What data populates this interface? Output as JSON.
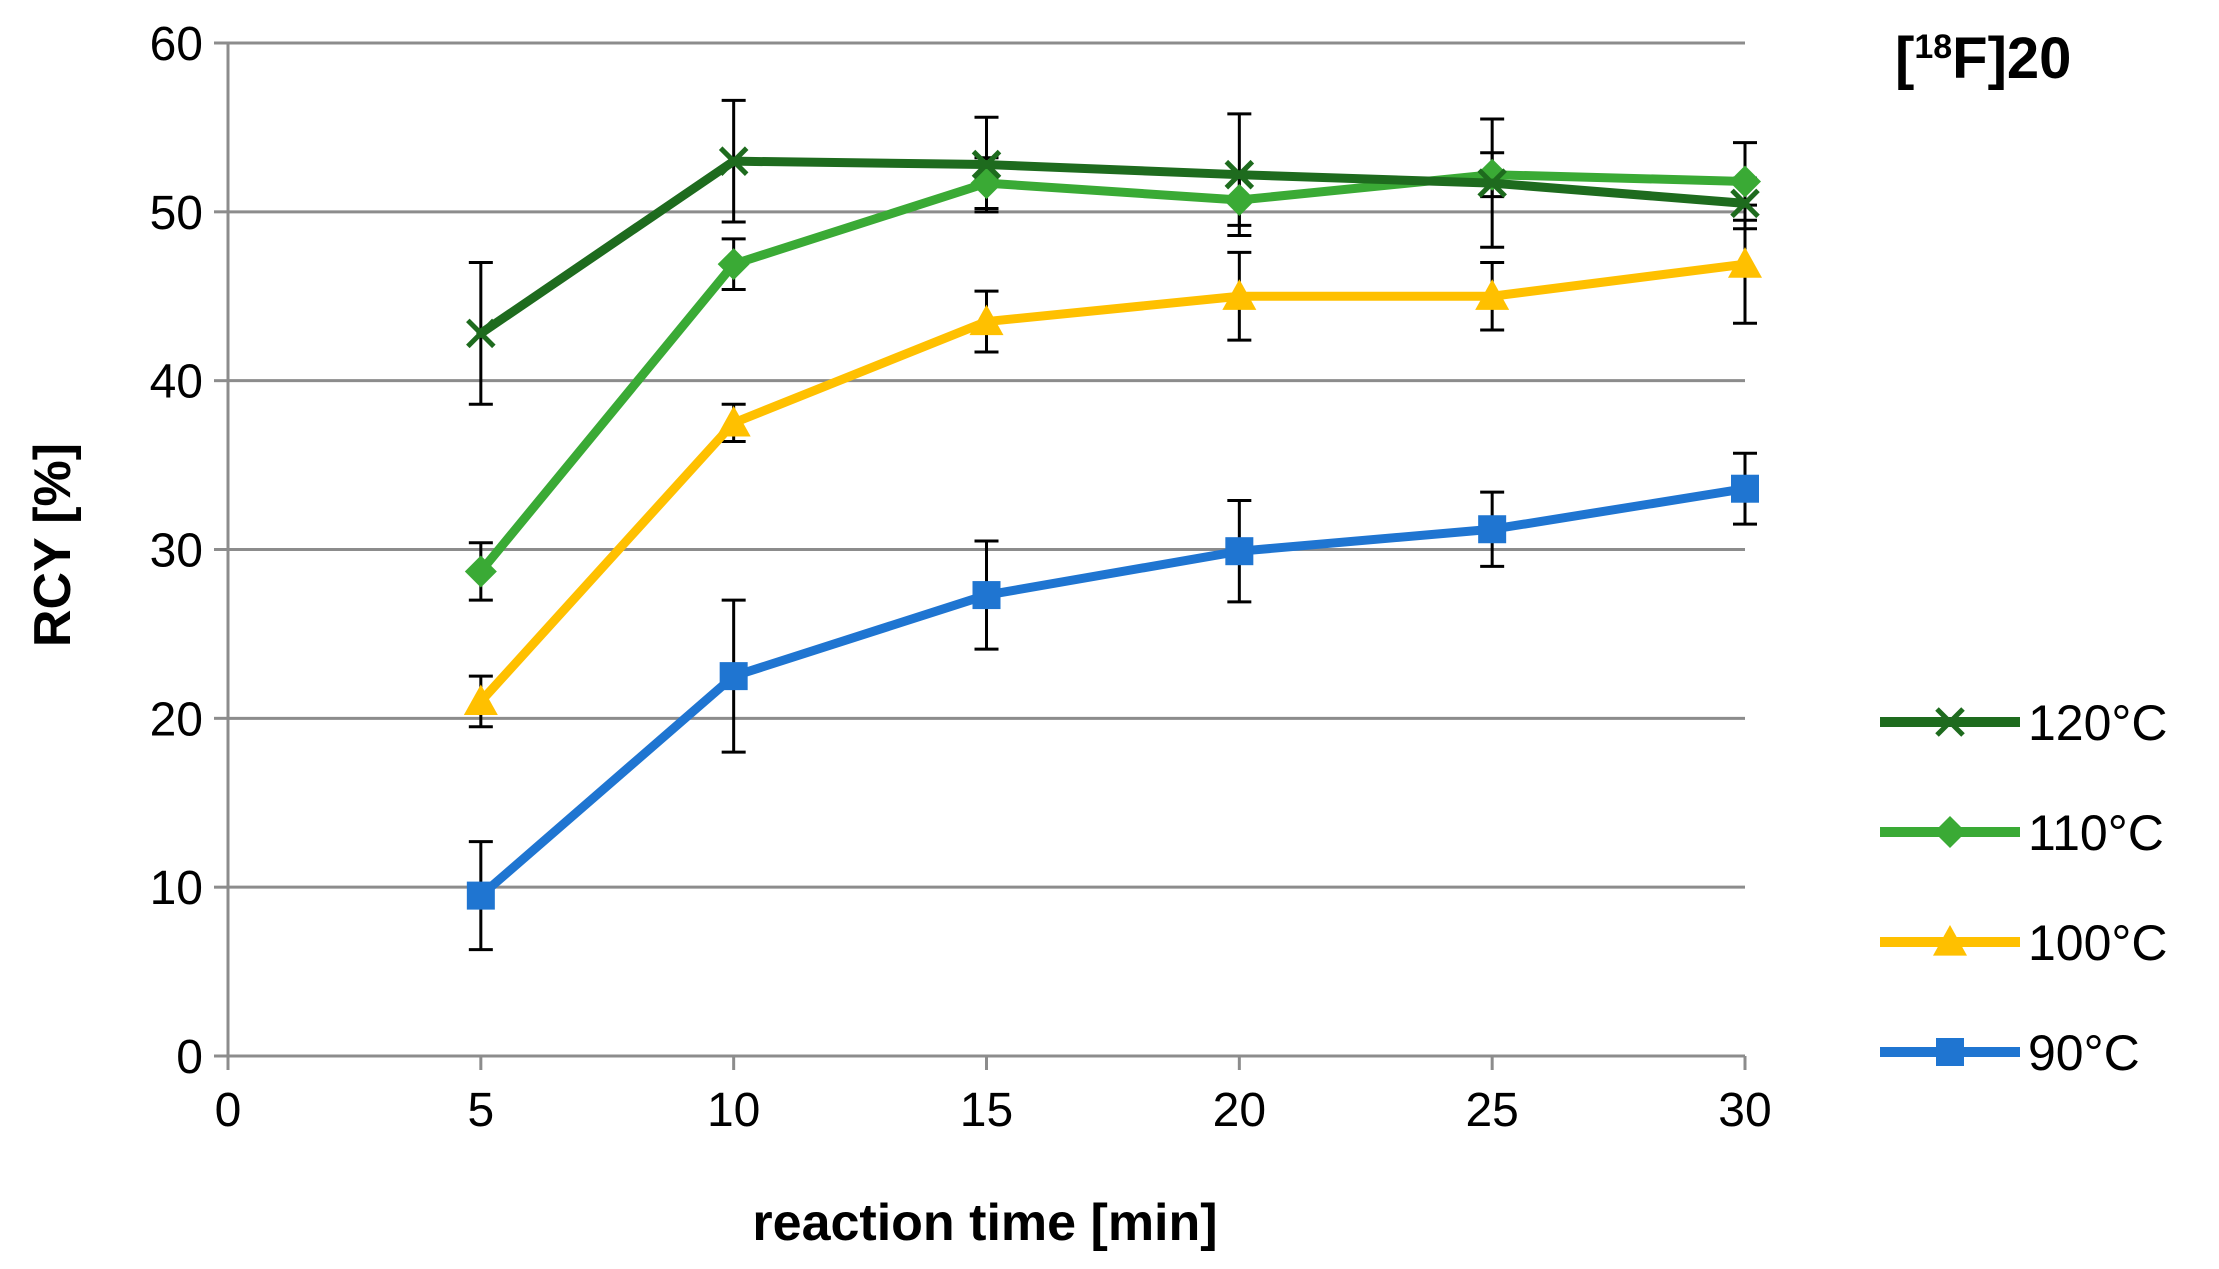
{
  "chart_data": {
    "type": "line",
    "title_prefix": "[",
    "title_sup": "18",
    "title_suffix": "F]20",
    "xlabel": "reaction time [min]",
    "ylabel": "RCY [%]",
    "xlim": [
      0,
      30
    ],
    "ylim": [
      0,
      60
    ],
    "x_ticks": [
      "0",
      "5",
      "10",
      "15",
      "20",
      "25",
      "30"
    ],
    "y_ticks": [
      "0",
      "10",
      "20",
      "30",
      "40",
      "50",
      "60"
    ],
    "grid": "horizontal",
    "legend_position": "right",
    "x": [
      5,
      10,
      15,
      20,
      25,
      30
    ],
    "series": [
      {
        "name": "120°C",
        "color": "#1e6b1e",
        "marker": "x",
        "values": [
          42.8,
          53.0,
          52.8,
          52.2,
          51.7,
          50.5
        ],
        "errors": [
          4.2,
          3.6,
          2.8,
          3.6,
          3.8,
          1.5
        ]
      },
      {
        "name": "110°C",
        "color": "#3aaa35",
        "marker": "diamond",
        "values": [
          28.7,
          46.9,
          51.7,
          50.7,
          52.2,
          51.8
        ],
        "errors": [
          1.7,
          1.5,
          1.5,
          1.5,
          1.3,
          2.3
        ]
      },
      {
        "name": "100°C",
        "color": "#ffc000",
        "marker": "triangle",
        "values": [
          21.0,
          37.5,
          43.5,
          45.0,
          45.0,
          46.9
        ],
        "errors": [
          1.5,
          1.1,
          1.8,
          2.6,
          2.0,
          3.5
        ]
      },
      {
        "name": "90°C",
        "color": "#1f75d1",
        "marker": "square",
        "values": [
          9.5,
          22.5,
          27.3,
          29.9,
          31.2,
          33.6
        ],
        "errors": [
          3.2,
          4.5,
          3.2,
          3.0,
          2.2,
          2.1
        ]
      }
    ]
  }
}
